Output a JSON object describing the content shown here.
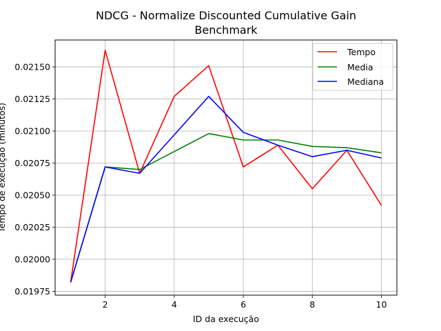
{
  "chart_data": {
    "type": "line",
    "title_lines": [
      "NDCG - Normalize Discounted Cumulative Gain",
      "Benchmark"
    ],
    "xlabel": "ID da execução",
    "ylabel": "Tempo de execução (minutos)",
    "xlim": [
      0.55,
      10.45
    ],
    "ylim": [
      0.01972,
      0.02171
    ],
    "xticks": [
      2,
      4,
      6,
      8,
      10
    ],
    "xtick_labels": [
      "2",
      "4",
      "6",
      "8",
      "10"
    ],
    "yticks": [
      0.01975,
      0.02,
      0.02025,
      0.0205,
      0.02075,
      0.021,
      0.02125,
      0.0215
    ],
    "ytick_labels": [
      "0.01975",
      "0.02000",
      "0.02025",
      "0.02050",
      "0.02075",
      "0.02100",
      "0.02125",
      "0.02150"
    ],
    "grid": true,
    "legend_position": "top-right",
    "x": [
      1,
      2,
      3,
      4,
      5,
      6,
      7,
      8,
      9,
      10
    ],
    "series": [
      {
        "name": "Tempo",
        "color": "#ff0000",
        "values": [
          0.01982,
          0.02163,
          0.02067,
          0.02127,
          0.02151,
          0.02072,
          0.02089,
          0.02055,
          0.02085,
          0.02042
        ]
      },
      {
        "name": "Media",
        "color": "#008000",
        "values": [
          0.01982,
          0.02072,
          0.0207,
          0.02084,
          0.02098,
          0.02093,
          0.02093,
          0.02088,
          0.02087,
          0.02083
        ]
      },
      {
        "name": "Mediana",
        "color": "#0000ff",
        "values": [
          0.01982,
          0.02072,
          0.02067,
          0.02097,
          0.02127,
          0.02099,
          0.02089,
          0.0208,
          0.02085,
          0.02079
        ]
      }
    ]
  }
}
